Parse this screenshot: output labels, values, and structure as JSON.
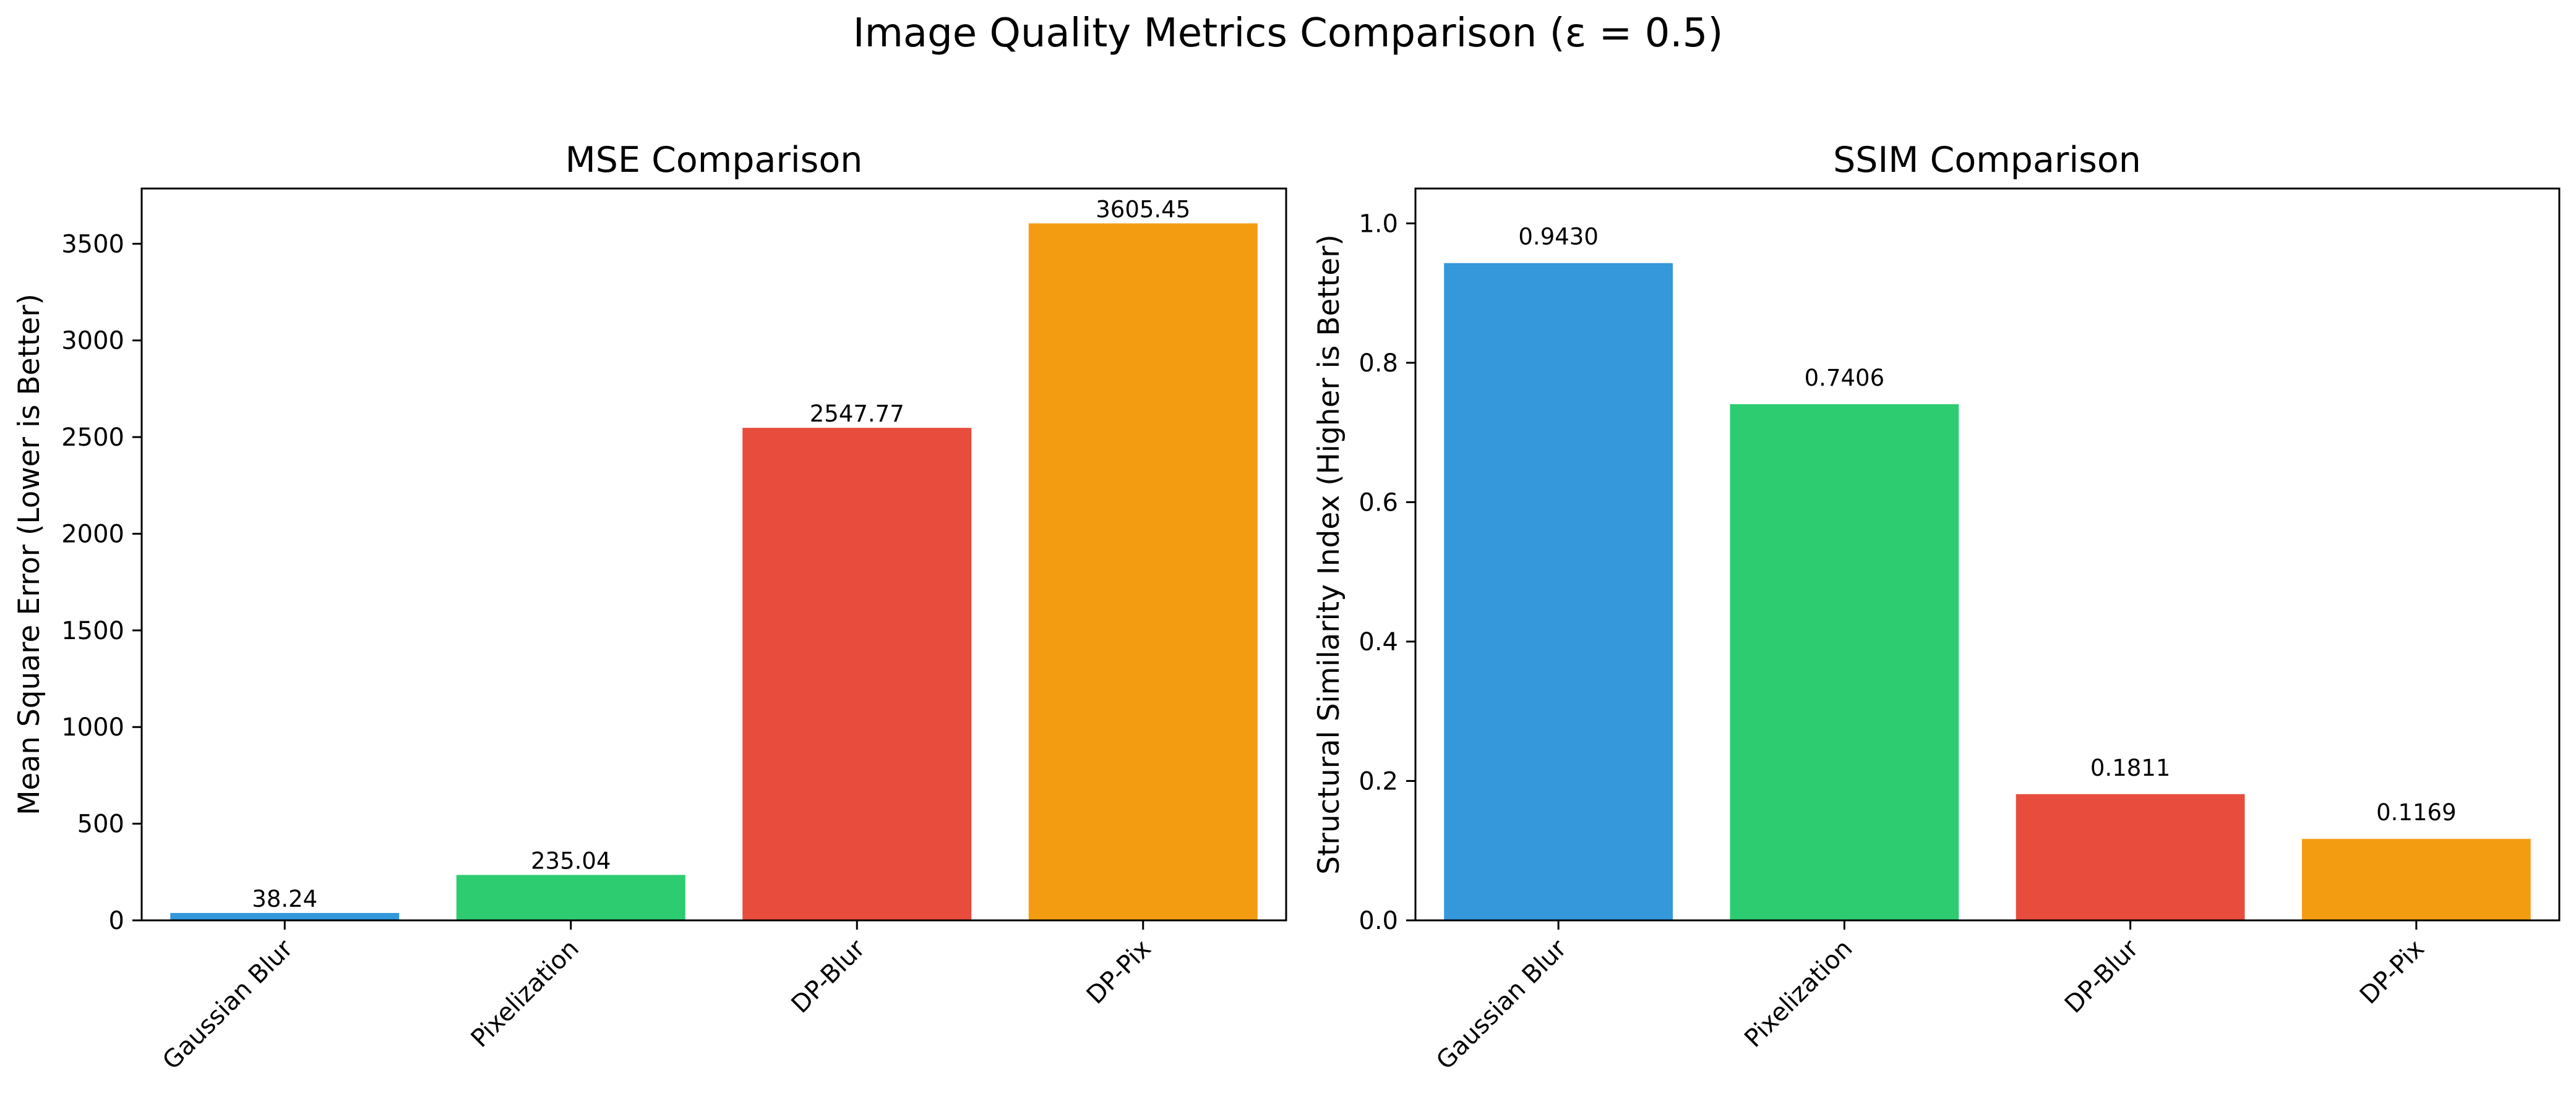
{
  "figure": {
    "suptitle": "Image Quality Metrics Comparison (ε = 0.5)"
  },
  "chart_data": [
    {
      "type": "bar",
      "title": "MSE Comparison",
      "xlabel": "",
      "ylabel": "Mean Square Error (Lower is Better)",
      "categories": [
        "Gaussian Blur",
        "Pixelization",
        "DP-Blur",
        "DP-Pix"
      ],
      "values": [
        38.24,
        235.04,
        2547.77,
        3605.45
      ],
      "value_labels": [
        "38.24",
        "235.04",
        "2547.77",
        "3605.45"
      ],
      "colors": [
        "#3498db",
        "#2ecc71",
        "#e74c3c",
        "#f39c12"
      ],
      "ylim": [
        0,
        3785.72
      ],
      "yticks": [
        0,
        500,
        1000,
        1500,
        2000,
        2500,
        3000,
        3500
      ],
      "ytick_labels": [
        "0",
        "500",
        "1000",
        "1500",
        "2000",
        "2500",
        "3000",
        "3500"
      ],
      "grid": false,
      "legend": "none"
    },
    {
      "type": "bar",
      "title": "SSIM Comparison",
      "xlabel": "",
      "ylabel": "Structural Similarity Index (Higher is Better)",
      "categories": [
        "Gaussian Blur",
        "Pixelization",
        "DP-Blur",
        "DP-Pix"
      ],
      "values": [
        0.943,
        0.7406,
        0.1811,
        0.1169
      ],
      "value_labels": [
        "0.9430",
        "0.7406",
        "0.1811",
        "0.1169"
      ],
      "colors": [
        "#3498db",
        "#2ecc71",
        "#e74c3c",
        "#f39c12"
      ],
      "ylim": [
        0,
        1.05
      ],
      "yticks": [
        0,
        0.2,
        0.4,
        0.6,
        0.8,
        1.0
      ],
      "ytick_labels": [
        "0.0",
        "0.2",
        "0.4",
        "0.6",
        "0.8",
        "1.0"
      ],
      "grid": false,
      "legend": "none"
    }
  ]
}
